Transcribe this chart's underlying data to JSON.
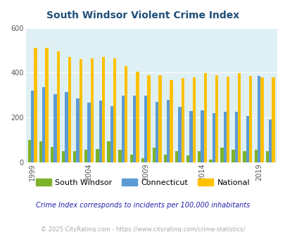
{
  "title": "South Windsor Violent Crime Index",
  "years": [
    1999,
    2000,
    2001,
    2002,
    2003,
    2004,
    2005,
    2006,
    2007,
    2008,
    2009,
    2010,
    2011,
    2012,
    2013,
    2014,
    2015,
    2016,
    2017,
    2018,
    2019,
    2020
  ],
  "south_windsor": [
    100,
    95,
    70,
    50,
    50,
    55,
    58,
    95,
    55,
    35,
    20,
    65,
    35,
    50,
    30,
    50,
    12,
    65,
    55,
    50,
    55,
    50
  ],
  "connecticut": [
    320,
    335,
    305,
    315,
    285,
    265,
    275,
    250,
    298,
    298,
    298,
    270,
    280,
    248,
    230,
    232,
    218,
    225,
    225,
    208,
    385,
    190
  ],
  "national": [
    510,
    510,
    495,
    470,
    462,
    465,
    470,
    463,
    430,
    405,
    390,
    390,
    367,
    376,
    380,
    398,
    388,
    382,
    398,
    385,
    380,
    380
  ],
  "ylim": [
    0,
    600
  ],
  "yticks": [
    0,
    200,
    400,
    600
  ],
  "xtick_years": [
    1999,
    2004,
    2009,
    2014,
    2019
  ],
  "bar_width": 0.27,
  "color_sw": "#7db32a",
  "color_ct": "#5b9bd5",
  "color_nat": "#ffc000",
  "plot_bg": "#dff0f5",
  "subtitle": "Crime Index corresponds to incidents per 100,000 inhabitants",
  "footer": "© 2025 CityRating.com - https://www.cityrating.com/crime-statistics/",
  "legend_labels": [
    "South Windsor",
    "Connecticut",
    "National"
  ],
  "title_color": "#1f4e79",
  "subtitle_color": "#2222aa",
  "footer_color": "#aaaaaa"
}
